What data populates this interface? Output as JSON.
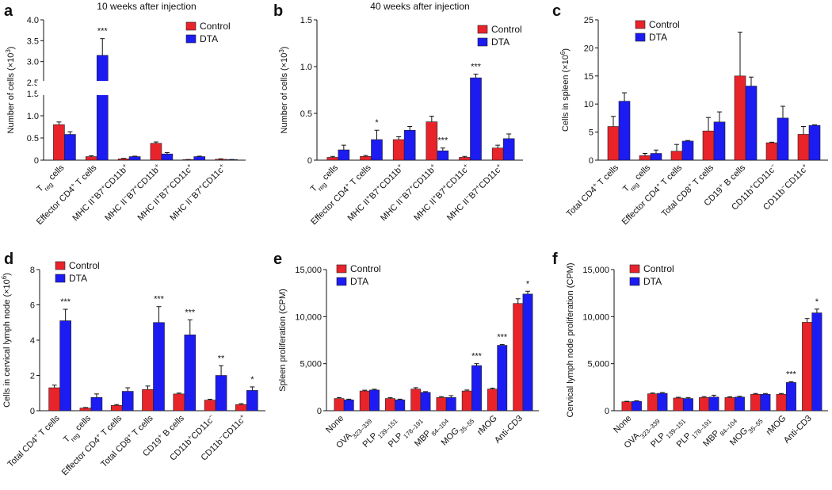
{
  "colors": {
    "control": "#e8232a",
    "dta": "#1b1bf2",
    "axis": "#111111",
    "error": "#111111"
  },
  "legend": [
    "Control",
    "DTA"
  ],
  "chart_data": [
    {
      "panel": "a",
      "type": "bar",
      "title": "10 weeks after injection",
      "ylabel": "Number of cells (×10³)",
      "axis_break": {
        "from": 1.5,
        "to": 2.5
      },
      "ylim": [
        0,
        4.0
      ],
      "yticks": [
        "0",
        "0.5",
        "1.0",
        "1.5",
        "2.5",
        "3.0",
        "3.5",
        "4.0"
      ],
      "legend_position": "top-right",
      "categories": [
        "Treg cells",
        "Effector CD4+ T cells",
        "MHC II+B7+CD11b+",
        "MHC II−B7+CD11b+",
        "MHC II+B7+CD11c+",
        "MHC II−B7+CD11c+"
      ],
      "series": [
        {
          "name": "Control",
          "values": [
            0.8,
            0.08,
            0.03,
            0.38,
            0.01,
            0.02
          ],
          "errors": [
            0.06,
            0.02,
            0.01,
            0.03,
            0.005,
            0.01
          ]
        },
        {
          "name": "DTA",
          "values": [
            0.58,
            3.15,
            0.08,
            0.14,
            0.08,
            0.01
          ],
          "errors": [
            0.06,
            0.4,
            0.01,
            0.03,
            0.01,
            0.005
          ]
        }
      ],
      "annotations": [
        {
          "category": 1,
          "series": "DTA",
          "text": "***"
        }
      ]
    },
    {
      "panel": "b",
      "type": "bar",
      "title": "40 weeks after injection",
      "ylabel": "Number of cells (×10³)",
      "ylim": [
        0,
        1.5
      ],
      "yticks": [
        "0",
        "0.5",
        "1.0",
        "1.5"
      ],
      "legend_position": "top-right",
      "categories": [
        "Treg cells",
        "Effector CD4+ T cells",
        "MHC II+B7+CD11b+",
        "MHC II−B7+CD11b+",
        "MHC II+B7+CD11c+",
        "MHC II−B7+CD11c+"
      ],
      "series": [
        {
          "name": "Control",
          "values": [
            0.03,
            0.04,
            0.22,
            0.41,
            0.03,
            0.13
          ],
          "errors": [
            0.01,
            0.01,
            0.03,
            0.06,
            0.01,
            0.03
          ]
        },
        {
          "name": "DTA",
          "values": [
            0.11,
            0.22,
            0.32,
            0.1,
            0.88,
            0.23
          ],
          "errors": [
            0.05,
            0.1,
            0.04,
            0.03,
            0.04,
            0.05
          ]
        }
      ],
      "annotations": [
        {
          "category": 1,
          "series": "DTA",
          "text": "*"
        },
        {
          "category": 3,
          "series": "DTA",
          "text": "***"
        },
        {
          "category": 4,
          "series": "DTA",
          "text": "***"
        }
      ]
    },
    {
      "panel": "c",
      "type": "bar",
      "title": "",
      "ylabel": "Cells in spleen (×10⁶)",
      "ylim": [
        0,
        25
      ],
      "yticks": [
        "0",
        "5",
        "10",
        "15",
        "20",
        "25"
      ],
      "legend_position": "top-left",
      "categories": [
        "Total CD4+ T cells",
        "Treg cells",
        "Effector CD4+ T cells",
        "Total CD8+ T cells",
        "CD19+ B cells",
        "CD11b+CD11c−",
        "CD11b−CD11c+"
      ],
      "series": [
        {
          "name": "Control",
          "values": [
            6.0,
            0.8,
            1.6,
            5.2,
            15.0,
            3.1,
            4.6
          ],
          "errors": [
            1.8,
            0.4,
            1.2,
            2.4,
            7.8,
            0.1,
            1.4
          ]
        },
        {
          "name": "DTA",
          "values": [
            10.5,
            1.2,
            3.4,
            6.8,
            13.2,
            7.5,
            6.2
          ],
          "errors": [
            1.5,
            0.6,
            0.1,
            1.8,
            1.6,
            2.1,
            0.1
          ]
        }
      ],
      "annotations": []
    },
    {
      "panel": "d",
      "type": "bar",
      "title": "",
      "ylabel": "Cells in cervical lymph node (×10⁶)",
      "ylim": [
        0,
        8
      ],
      "yticks": [
        "0",
        "2",
        "4",
        "6",
        "8"
      ],
      "legend_position": "top-left",
      "categories": [
        "Total CD4+ T cells",
        "Treg cells",
        "Effector CD4+ T cells",
        "Total CD8+ T cells",
        "CD19+ B cells",
        "CD11b+CD11c−",
        "CD11b−CD11c+"
      ],
      "series": [
        {
          "name": "Control",
          "values": [
            1.3,
            0.15,
            0.3,
            1.2,
            0.95,
            0.6,
            0.35
          ],
          "errors": [
            0.15,
            0.03,
            0.05,
            0.2,
            0.05,
            0.05,
            0.05
          ]
        },
        {
          "name": "DTA",
          "values": [
            5.1,
            0.75,
            1.1,
            5.0,
            4.3,
            2.0,
            1.15
          ],
          "errors": [
            0.65,
            0.2,
            0.2,
            0.9,
            0.85,
            0.55,
            0.2
          ]
        }
      ],
      "annotations": [
        {
          "category": 0,
          "series": "DTA",
          "text": "***"
        },
        {
          "category": 3,
          "series": "DTA",
          "text": "***"
        },
        {
          "category": 4,
          "series": "DTA",
          "text": "***"
        },
        {
          "category": 5,
          "series": "DTA",
          "text": "**"
        },
        {
          "category": 6,
          "series": "DTA",
          "text": "*"
        }
      ]
    },
    {
      "panel": "e",
      "type": "bar",
      "title": "",
      "ylabel": "Spleen proliferation (CPM)",
      "ylim": [
        0,
        15000
      ],
      "yticks": [
        "0",
        "5,000",
        "10,000",
        "15,000"
      ],
      "legend_position": "top-left",
      "categories": [
        "None",
        "OVA323–339",
        "PLP139–151",
        "PLP178–191",
        "MBP84–104",
        "MOG35–55",
        "rMOG",
        "Anti-CD3"
      ],
      "series": [
        {
          "name": "Control",
          "values": [
            1300,
            2100,
            1300,
            2300,
            1400,
            2100,
            2300,
            11400
          ],
          "errors": [
            100,
            80,
            80,
            150,
            100,
            100,
            100,
            500
          ]
        },
        {
          "name": "DTA",
          "values": [
            1150,
            2200,
            1150,
            1950,
            1400,
            4800,
            6950,
            12400
          ],
          "errors": [
            80,
            80,
            80,
            80,
            200,
            200,
            80,
            300
          ]
        }
      ],
      "annotations": [
        {
          "category": 5,
          "series": "DTA",
          "text": "***"
        },
        {
          "category": 6,
          "series": "DTA",
          "text": "***"
        },
        {
          "category": 7,
          "series": "DTA",
          "text": "*"
        }
      ]
    },
    {
      "panel": "f",
      "type": "bar",
      "title": "",
      "ylabel": "Cervical lymph node proliferation (CPM)",
      "ylim": [
        0,
        15000
      ],
      "yticks": [
        "0",
        "5,000",
        "10,000",
        "15,000"
      ],
      "legend_position": "top-left",
      "categories": [
        "None",
        "OVA323–339",
        "PLP139–151",
        "PLP178–191",
        "MBP84–104",
        "MOG35–55",
        "rMOG",
        "Anti-CD3"
      ],
      "series": [
        {
          "name": "Control",
          "values": [
            950,
            1800,
            1350,
            1400,
            1400,
            1750,
            1750,
            9400
          ],
          "errors": [
            50,
            80,
            80,
            100,
            80,
            80,
            80,
            400
          ]
        },
        {
          "name": "DTA",
          "values": [
            1000,
            1850,
            1300,
            1450,
            1450,
            1750,
            3000,
            10400
          ],
          "errors": [
            50,
            80,
            80,
            200,
            80,
            80,
            80,
            400
          ]
        }
      ],
      "annotations": [
        {
          "category": 6,
          "series": "DTA",
          "text": "***"
        },
        {
          "category": 7,
          "series": "DTA",
          "text": "*"
        }
      ]
    }
  ]
}
